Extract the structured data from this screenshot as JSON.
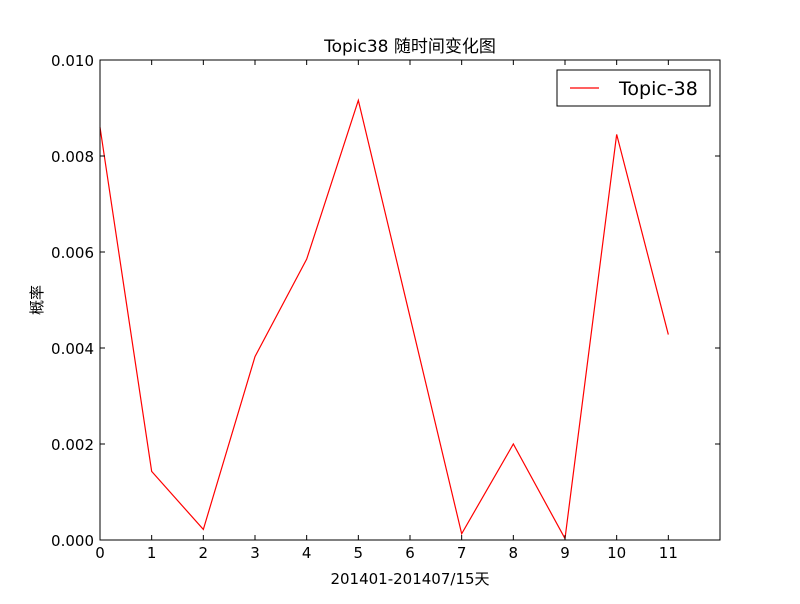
{
  "chart_data": {
    "type": "line",
    "title": "Topic38 随时间变化图",
    "xlabel": "201401-201407/15天",
    "ylabel": "概率",
    "x": [
      0,
      1,
      2,
      3,
      4,
      5,
      6,
      7,
      8,
      9,
      10,
      11
    ],
    "xlim": [
      0,
      12
    ],
    "ylim": [
      0,
      0.01
    ],
    "x_ticks": [
      0,
      1,
      2,
      3,
      4,
      5,
      6,
      7,
      8,
      9,
      10,
      11
    ],
    "x_tick_labels": [
      "0",
      "1",
      "2",
      "3",
      "4",
      "5",
      "6",
      "7",
      "8",
      "9",
      "10",
      "11"
    ],
    "y_ticks": [
      0,
      0.002,
      0.004,
      0.006,
      0.008,
      0.01
    ],
    "y_tick_labels": [
      "0.000",
      "0.002",
      "0.004",
      "0.006",
      "0.008",
      "0.010"
    ],
    "grid": false,
    "legend_position": "top-right",
    "series": [
      {
        "name": "Topic-38",
        "color": "#ff0000",
        "values": [
          0.0086,
          0.00143,
          0.00022,
          0.00382,
          0.00585,
          0.00916,
          0.00465,
          0.00013,
          0.002,
          3e-05,
          0.00845,
          0.00428
        ]
      }
    ]
  }
}
